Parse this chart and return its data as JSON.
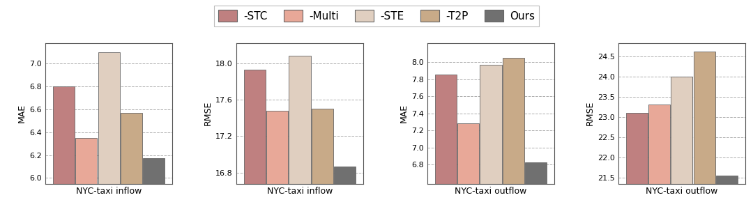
{
  "subplots": [
    {
      "title": "NYC-taxi inflow",
      "ylabel": "MAE",
      "values": [
        6.8,
        6.35,
        7.1,
        6.57,
        6.17
      ],
      "ylim": [
        5.95,
        7.18
      ],
      "yticks": [
        6.0,
        6.2,
        6.4,
        6.6,
        6.8,
        7.0
      ]
    },
    {
      "title": "NYC-taxi inflow",
      "ylabel": "RMSE",
      "values": [
        17.93,
        17.48,
        18.08,
        17.5,
        16.87
      ],
      "ylim": [
        16.68,
        18.22
      ],
      "yticks": [
        16.8,
        17.2,
        17.6,
        18.0
      ]
    },
    {
      "title": "NYC-taxi outflow",
      "ylabel": "MAE",
      "values": [
        7.85,
        7.28,
        7.97,
        8.05,
        6.83
      ],
      "ylim": [
        6.58,
        8.22
      ],
      "yticks": [
        6.8,
        7.0,
        7.2,
        7.4,
        7.6,
        7.8,
        8.0
      ]
    },
    {
      "title": "NYC-taxi outflow",
      "ylabel": "RMSE",
      "values": [
        23.1,
        23.3,
        24.0,
        24.62,
        21.55
      ],
      "ylim": [
        21.35,
        24.82
      ],
      "yticks": [
        21.5,
        22.0,
        22.5,
        23.0,
        23.5,
        24.0,
        24.5
      ]
    }
  ],
  "bar_colors": [
    "#bf8080",
    "#e8a898",
    "#e0cfc0",
    "#c8aa88",
    "#707070"
  ],
  "legend_labels": [
    "-STC",
    "-Multi",
    "-STE",
    "-T2P",
    "Ours"
  ],
  "bar_width": 0.14,
  "bar_gap": 0.005,
  "bar_edge_color": "#666666",
  "bar_edge_width": 0.6,
  "background_color": "#ffffff",
  "grid_color": "#999999",
  "grid_linestyle": "--",
  "grid_linewidth": 0.7,
  "tick_fontsize": 8.0,
  "label_fontsize": 9.0,
  "xlabel_fontsize": 9.0,
  "legend_fontsize": 11.0
}
